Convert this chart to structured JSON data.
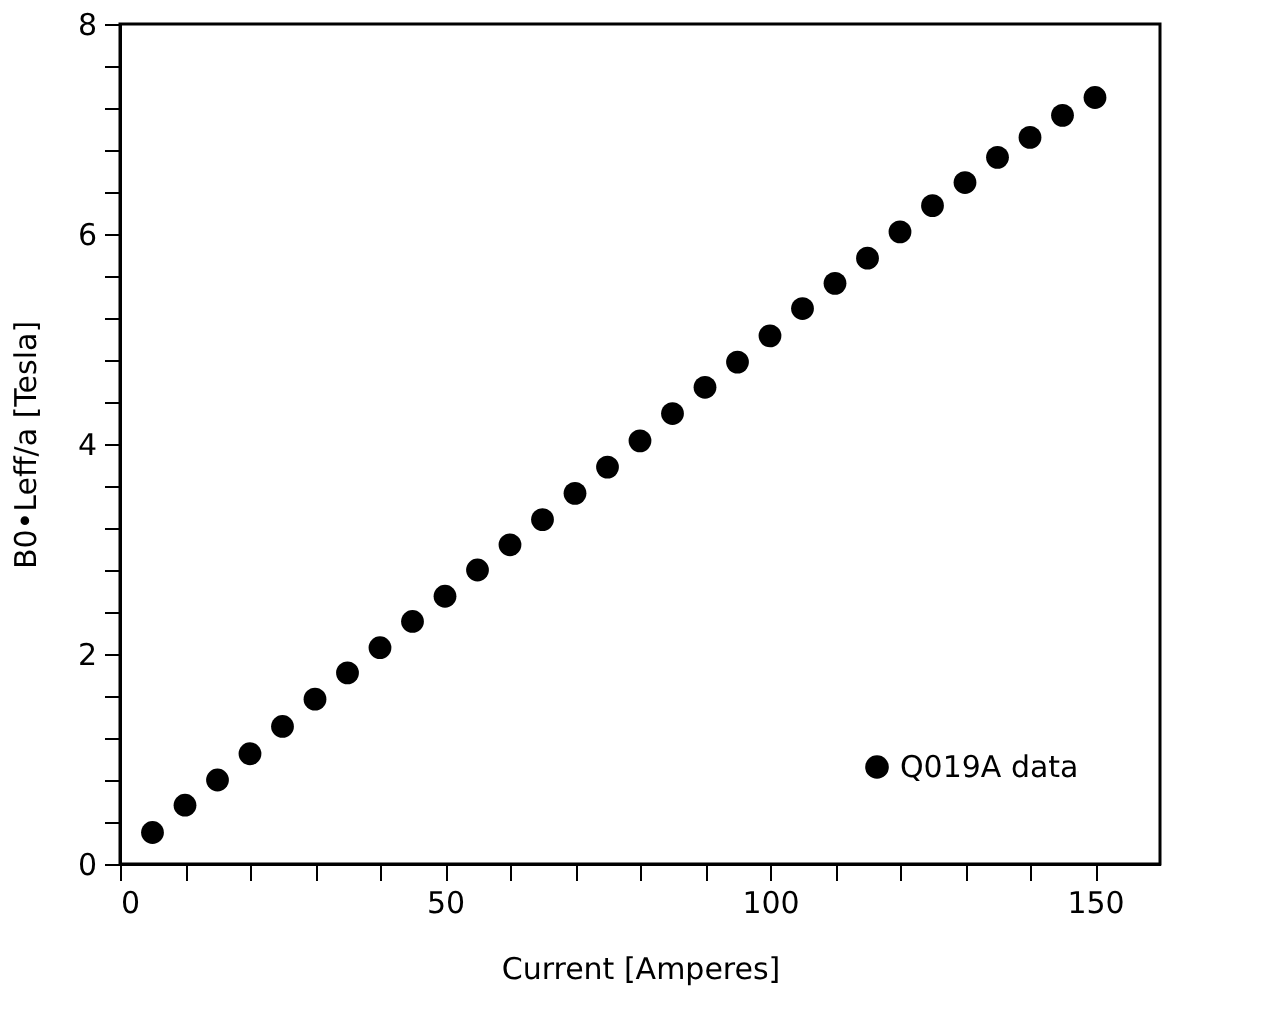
{
  "chart_data": {
    "type": "scatter",
    "xlabel": "Current [Amperes]",
    "ylabel": "B0•Leff/a    [Tesla]",
    "x": [
      5,
      10,
      15,
      20,
      25,
      30,
      35,
      40,
      45,
      50,
      55,
      60,
      65,
      70,
      75,
      80,
      85,
      90,
      95,
      100,
      105,
      110,
      115,
      120,
      125,
      130,
      135,
      140,
      145,
      150
    ],
    "series": [
      {
        "name": "Q019A data",
        "color": "#000000",
        "values": [
          0.3,
          0.56,
          0.8,
          1.05,
          1.31,
          1.57,
          1.82,
          2.06,
          2.31,
          2.55,
          2.8,
          3.04,
          3.28,
          3.53,
          3.78,
          4.03,
          4.29,
          4.54,
          4.78,
          5.03,
          5.29,
          5.53,
          5.77,
          6.02,
          6.27,
          6.49,
          6.73,
          6.92,
          7.13,
          7.3
        ]
      }
    ],
    "xlim": [
      0,
      160
    ],
    "xticks": [
      0,
      {
        "value": 10,
        "label": null
      },
      {
        "value": 20,
        "label": null
      },
      {
        "value": 30,
        "label": null
      },
      {
        "value": 40,
        "label": null
      },
      50,
      {
        "value": 60,
        "label": null
      },
      {
        "value": 70,
        "label": null
      },
      {
        "value": 80,
        "label": null
      },
      {
        "value": 90,
        "label": null
      },
      100,
      {
        "value": 110,
        "label": null
      },
      {
        "value": 120,
        "label": null
      },
      {
        "value": 130,
        "label": null
      },
      {
        "value": 140,
        "label": null
      },
      150
    ],
    "ylim": [
      0,
      8
    ],
    "yticks": [
      0,
      {
        "value": 0.4,
        "label": null
      },
      {
        "value": 0.8,
        "label": null
      },
      {
        "value": 1.2,
        "label": null
      },
      {
        "value": 1.6,
        "label": null
      },
      2,
      {
        "value": 2.4,
        "label": null
      },
      {
        "value": 2.8,
        "label": null
      },
      {
        "value": 3.2,
        "label": null
      },
      {
        "value": 3.6,
        "label": null
      },
      4,
      {
        "value": 4.4,
        "label": null
      },
      {
        "value": 4.8,
        "label": null
      },
      {
        "value": 5.2,
        "label": null
      },
      {
        "value": 5.6,
        "label": null
      },
      6,
      {
        "value": 6.4,
        "label": null
      },
      {
        "value": 6.8,
        "label": null
      },
      {
        "value": 7.2,
        "label": null
      },
      {
        "value": 7.6,
        "label": null
      },
      8
    ],
    "marker": "circle",
    "legend": "bottom right",
    "grid": false
  }
}
